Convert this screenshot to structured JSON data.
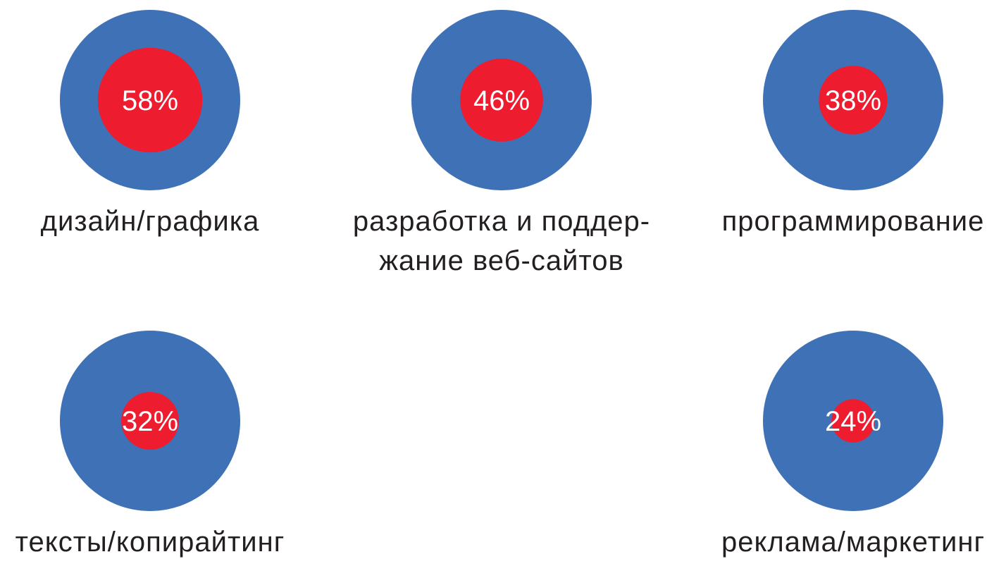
{
  "chart_data": {
    "type": "proportional-circles",
    "unit": "%",
    "colors": {
      "outer": "#3F71B7",
      "inner": "#ED1C2E",
      "value_text": "#FFFFFF",
      "label_text": "#231F20"
    },
    "items": [
      {
        "label_lines": [
          "дизайн/графика"
        ],
        "value": 58,
        "value_label": "58%"
      },
      {
        "label_lines": [
          "разработка и поддер-",
          "жание веб-сайтов"
        ],
        "value": 46,
        "value_label": "46%"
      },
      {
        "label_lines": [
          "программирование"
        ],
        "value": 38,
        "value_label": "38%"
      },
      {
        "label_lines": [
          "тексты/копирайтинг"
        ],
        "value": 32,
        "value_label": "32%"
      },
      {
        "label_lines": [
          "реклама/маркетинг"
        ],
        "value": 24,
        "value_label": "24%"
      }
    ]
  }
}
